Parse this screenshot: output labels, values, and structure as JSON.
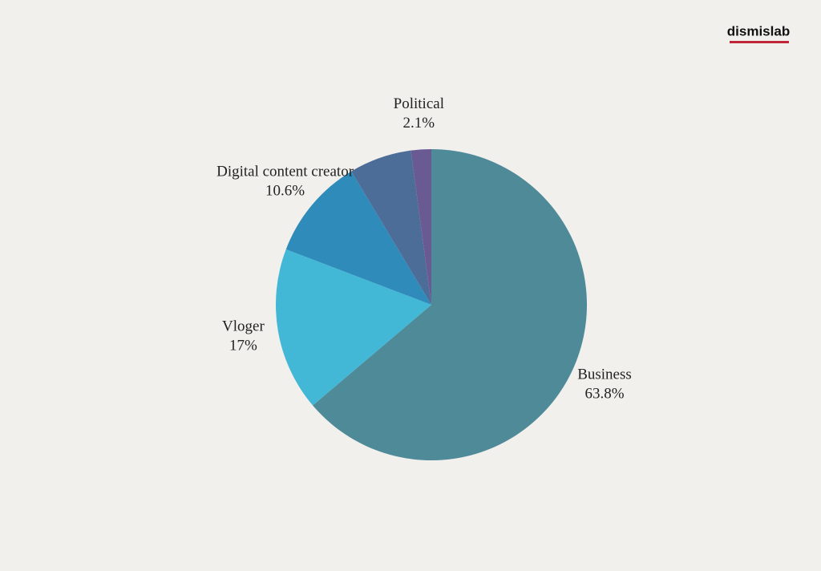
{
  "logo": "dismislab",
  "chart_data": {
    "type": "pie",
    "categories": [
      "Business",
      "Vloger",
      "Digital content creator",
      null,
      "Political"
    ],
    "values": [
      63.8,
      17,
      10.6,
      6.5,
      2.1
    ],
    "value_labels": [
      "63.8%",
      "17%",
      "10.6%",
      null,
      "2.1%"
    ],
    "colors": [
      "#4f8a99",
      "#43b8d6",
      "#2e8bba",
      "#4d6d99",
      "#6a5a93"
    ]
  }
}
